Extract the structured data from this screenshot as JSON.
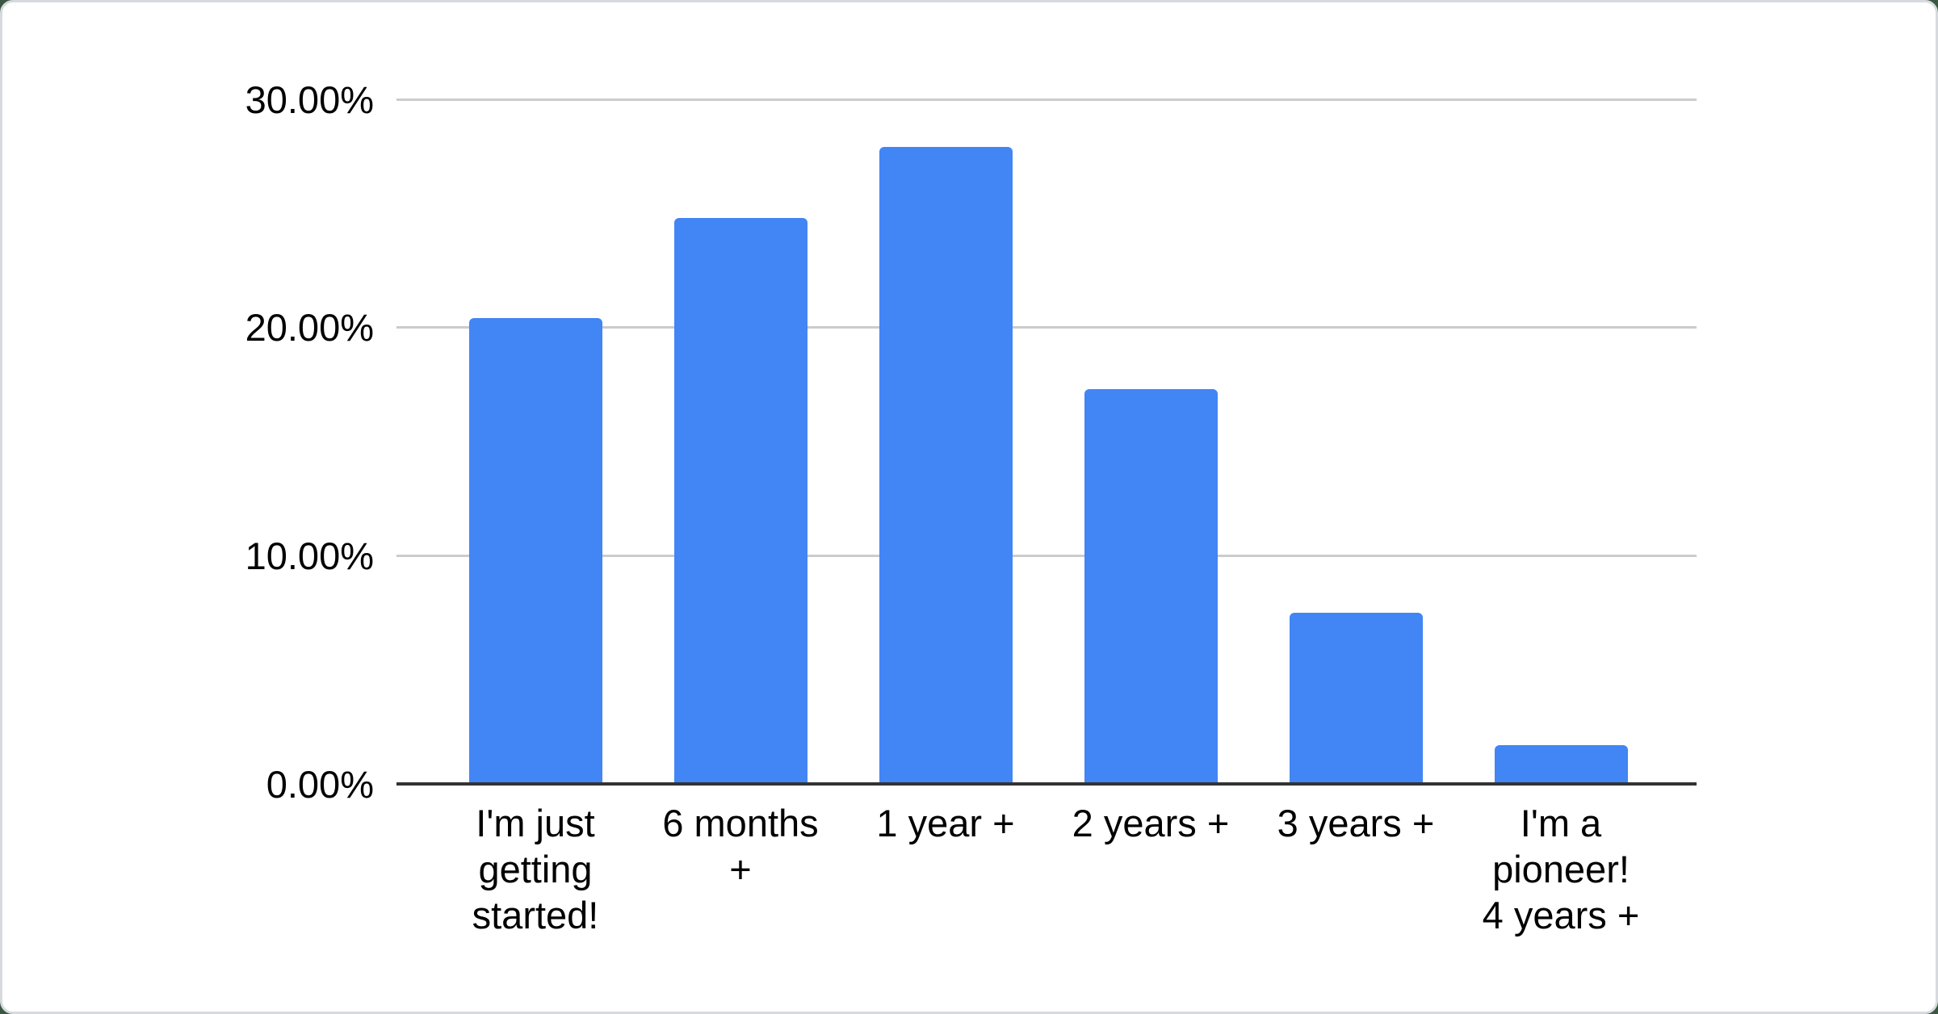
{
  "page": {
    "background_color": "#3A5741"
  },
  "card": {
    "background_color": "#FFFFFF",
    "border_color": "#D6DADE"
  },
  "chart_data": {
    "type": "bar",
    "title": "",
    "categories": [
      "I'm just getting started!",
      "6 months +",
      "1 year +",
      "2 years +",
      "3 years +",
      "I'm a pioneer! 4 years +"
    ],
    "category_display_lines": [
      "I'm just\ngetting\nstarted!",
      "6 months\n+",
      "1 year +",
      "2 years +",
      "3 years +",
      "I'm a\npioneer!\n4 years +"
    ],
    "values": [
      20.4,
      24.8,
      27.9,
      17.3,
      7.5,
      1.7
    ],
    "value_unit": "%",
    "y_axis": {
      "min": 0,
      "max": 30,
      "ticks": [
        {
          "label": "30.00%",
          "value": 30
        },
        {
          "label": "20.00%",
          "value": 20
        },
        {
          "label": "10.00%",
          "value": 10
        },
        {
          "label": "0.00%",
          "value": 0
        }
      ]
    },
    "grid": true,
    "legend_position": "none",
    "colors": {
      "bar": "#4285F4",
      "gridline": "#CCCCCC",
      "axis_line": "#333333",
      "label_text": "#000000"
    }
  }
}
